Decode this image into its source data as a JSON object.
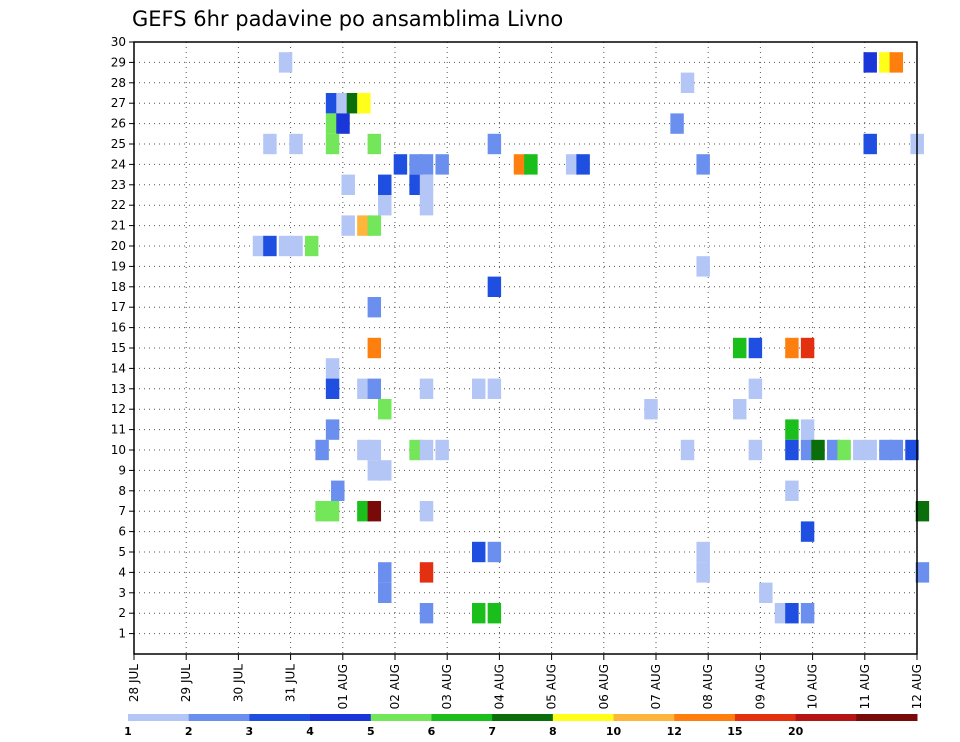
{
  "chart_data": {
    "type": "heatmap",
    "title": "GEFS 6hr padavine po ansamblima Livno",
    "xlabel": "",
    "ylabel": "",
    "x_tick_labels": [
      "28 JUL",
      "29 JUL",
      "30 JUL",
      "31 JUL",
      "01 AUG",
      "02 AUG",
      "03 AUG",
      "04 AUG",
      "05 AUG",
      "06 AUG",
      "07 AUG",
      "08 AUG",
      "09 AUG",
      "10 AUG",
      "11 AUG",
      "12 AUG"
    ],
    "y_tick_labels": [
      "1",
      "2",
      "3",
      "4",
      "5",
      "6",
      "7",
      "8",
      "9",
      "10",
      "11",
      "12",
      "13",
      "14",
      "15",
      "16",
      "17",
      "18",
      "19",
      "20",
      "21",
      "22",
      "23",
      "24",
      "25",
      "26",
      "27",
      "28",
      "29",
      "30"
    ],
    "x_range_days": [
      0,
      15
    ],
    "y_range": [
      0,
      30
    ],
    "grid": true,
    "legend_placement": "bottom",
    "legend": {
      "labels": [
        "1",
        "2",
        "3",
        "4",
        "5",
        "6",
        "7",
        "8",
        "10",
        "12",
        "15",
        "20"
      ],
      "colors": [
        "#b3c6f5",
        "#6b8fee",
        "#1f4fe0",
        "#1a35d8",
        "#73e65a",
        "#1bbf1b",
        "#0a6e0a",
        "#ffff1a",
        "#ffb43c",
        "#ff7f0e",
        "#e33010",
        "#b41414",
        "#780a0a"
      ]
    },
    "cells": [
      [
        "2.9",
        29,
        0
      ],
      [
        "14.1",
        29,
        3
      ],
      [
        "14.4",
        29,
        7
      ],
      [
        "14.6",
        29,
        9
      ],
      [
        "10.6",
        28,
        0
      ],
      [
        "3.8",
        27,
        2
      ],
      [
        "4.0",
        27,
        0
      ],
      [
        "4.2",
        27,
        6
      ],
      [
        "4.4",
        27,
        7
      ],
      [
        "3.8",
        26,
        4
      ],
      [
        "4.0",
        26,
        3
      ],
      [
        "10.4",
        26,
        1
      ],
      [
        "2.6",
        25,
        0
      ],
      [
        "3.1",
        25,
        0
      ],
      [
        "3.8",
        25,
        4
      ],
      [
        "4.6",
        25,
        4
      ],
      [
        "6.9",
        25,
        1
      ],
      [
        "14.1",
        25,
        2
      ],
      [
        "15.0",
        25,
        0
      ],
      [
        "5.1",
        24,
        2
      ],
      [
        "5.4",
        24,
        1
      ],
      [
        "5.6",
        24,
        1
      ],
      [
        "5.9",
        24,
        1
      ],
      [
        "7.4",
        24,
        9
      ],
      [
        "7.6",
        24,
        5
      ],
      [
        "8.4",
        24,
        0
      ],
      [
        "8.6",
        24,
        2
      ],
      [
        "10.9",
        24,
        1
      ],
      [
        "4.1",
        23,
        0
      ],
      [
        "4.8",
        23,
        2
      ],
      [
        "5.4",
        23,
        2
      ],
      [
        "5.6",
        23,
        0
      ],
      [
        "4.8",
        22,
        0
      ],
      [
        "5.6",
        22,
        0
      ],
      [
        "4.1",
        21,
        0
      ],
      [
        "4.4",
        21,
        8
      ],
      [
        "4.6",
        21,
        4
      ],
      [
        "2.4",
        20,
        0
      ],
      [
        "2.6",
        20,
        2
      ],
      [
        "2.9",
        20,
        0
      ],
      [
        "3.1",
        20,
        0
      ],
      [
        "3.4",
        20,
        4
      ],
      [
        "10.9",
        19,
        0
      ],
      [
        "6.9",
        18,
        2
      ],
      [
        "4.6",
        17,
        1
      ],
      [
        "4.6",
        15,
        9
      ],
      [
        "11.6",
        15,
        5
      ],
      [
        "11.9",
        15,
        2
      ],
      [
        "12.6",
        15,
        9
      ],
      [
        "12.9",
        15,
        10
      ],
      [
        "3.8",
        14,
        0
      ],
      [
        "3.8",
        13,
        2
      ],
      [
        "4.4",
        13,
        0
      ],
      [
        "4.6",
        13,
        1
      ],
      [
        "5.6",
        13,
        0
      ],
      [
        "6.6",
        13,
        0
      ],
      [
        "6.9",
        13,
        0
      ],
      [
        "11.9",
        13,
        0
      ],
      [
        "4.8",
        12,
        4
      ],
      [
        "9.9",
        12,
        0
      ],
      [
        "11.6",
        12,
        0
      ],
      [
        "3.8",
        11,
        1
      ],
      [
        "12.6",
        11,
        5
      ],
      [
        "12.9",
        11,
        0
      ],
      [
        "3.6",
        10,
        1
      ],
      [
        "4.4",
        10,
        0
      ],
      [
        "4.6",
        10,
        0
      ],
      [
        "5.4",
        10,
        4
      ],
      [
        "5.6",
        10,
        0
      ],
      [
        "5.9",
        10,
        0
      ],
      [
        "10.6",
        10,
        0
      ],
      [
        "11.9",
        10,
        0
      ],
      [
        "12.6",
        10,
        2
      ],
      [
        "12.9",
        10,
        1
      ],
      [
        "13.1",
        10,
        6
      ],
      [
        "13.4",
        10,
        1
      ],
      [
        "13.6",
        10,
        4
      ],
      [
        "13.9",
        10,
        0
      ],
      [
        "14.1",
        10,
        0
      ],
      [
        "14.4",
        10,
        1
      ],
      [
        "14.6",
        10,
        1
      ],
      [
        "14.9",
        10,
        2
      ],
      [
        "4.6",
        9,
        0
      ],
      [
        "4.8",
        9,
        0
      ],
      [
        "3.9",
        8,
        1
      ],
      [
        "12.6",
        8,
        0
      ],
      [
        "3.6",
        7,
        4
      ],
      [
        "3.8",
        7,
        4
      ],
      [
        "4.4",
        7,
        5
      ],
      [
        "4.6",
        7,
        12
      ],
      [
        "5.6",
        7,
        0
      ],
      [
        "15.1",
        7,
        6
      ],
      [
        "12.9",
        6,
        2
      ],
      [
        "6.6",
        5,
        2
      ],
      [
        "6.9",
        5,
        1
      ],
      [
        "10.9",
        5,
        0
      ],
      [
        "4.8",
        4,
        1
      ],
      [
        "5.6",
        4,
        10
      ],
      [
        "10.9",
        4,
        0
      ],
      [
        "15.1",
        4,
        1
      ],
      [
        "4.8",
        3,
        1
      ],
      [
        "12.1",
        3,
        0
      ],
      [
        "5.6",
        2,
        1
      ],
      [
        "6.6",
        2,
        5
      ],
      [
        "6.9",
        2,
        5
      ],
      [
        "12.4",
        2,
        0
      ],
      [
        "12.6",
        2,
        2
      ],
      [
        "12.9",
        2,
        1
      ]
    ]
  }
}
